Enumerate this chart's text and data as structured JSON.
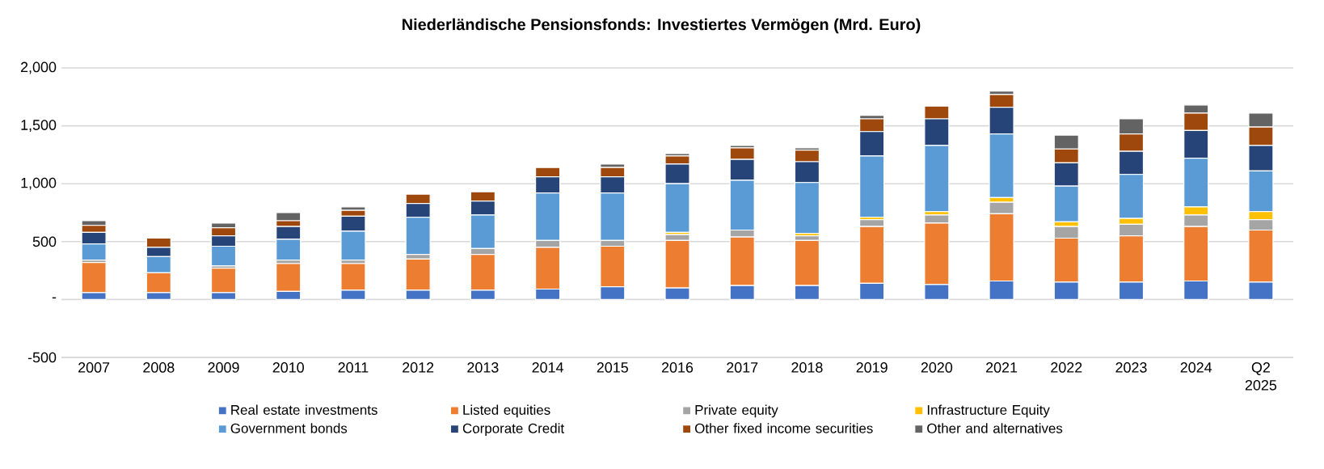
{
  "chart_data": {
    "type": "bar",
    "stacked": true,
    "title": "Niederländische Pensionsfonds: Investiertes Vermögen (Mrd. Euro)",
    "categories": [
      "2007",
      "2008",
      "2009",
      "2010",
      "2011",
      "2012",
      "2013",
      "2014",
      "2015",
      "2016",
      "2017",
      "2018",
      "2019",
      "2020",
      "2021",
      "2022",
      "2023",
      "2024",
      "Q2 2025"
    ],
    "series": [
      {
        "name": "Real estate investments",
        "color": "#4472c4",
        "values": [
          60,
          60,
          60,
          70,
          80,
          80,
          80,
          90,
          110,
          100,
          120,
          120,
          140,
          130,
          160,
          150,
          150,
          160,
          150
        ]
      },
      {
        "name": "Listed equities",
        "color": "#ed7d31",
        "values": [
          260,
          170,
          210,
          240,
          230,
          270,
          310,
          360,
          350,
          410,
          420,
          390,
          490,
          530,
          580,
          380,
          400,
          470,
          450
        ]
      },
      {
        "name": "Private equity",
        "color": "#a5a5a5",
        "values": [
          20,
          null,
          20,
          30,
          30,
          40,
          50,
          60,
          50,
          50,
          60,
          40,
          60,
          70,
          100,
          100,
          100,
          100,
          90
        ]
      },
      {
        "name": "Infrastructure Equity",
        "color": "#ffc000",
        "values": [
          0,
          0,
          0,
          0,
          0,
          0,
          0,
          0,
          0,
          20,
          0,
          20,
          20,
          30,
          40,
          40,
          50,
          70,
          70
        ]
      },
      {
        "name": "Government bonds",
        "color": "#5b9bd5",
        "values": [
          140,
          140,
          170,
          180,
          250,
          320,
          290,
          410,
          410,
          420,
          430,
          440,
          530,
          570,
          550,
          310,
          380,
          420,
          350
        ]
      },
      {
        "name": "Corporate Credit",
        "color": "#264478",
        "values": [
          100,
          80,
          90,
          110,
          130,
          120,
          120,
          140,
          140,
          170,
          180,
          180,
          210,
          230,
          230,
          200,
          200,
          240,
          220
        ]
      },
      {
        "name": "Other fixed income securities",
        "color": "#9e480e",
        "values": [
          60,
          80,
          70,
          50,
          50,
          80,
          80,
          80,
          80,
          70,
          100,
          100,
          110,
          110,
          110,
          120,
          150,
          150,
          160
        ]
      },
      {
        "name": "Other and alternatives",
        "color": "#636363",
        "values": [
          40,
          0,
          40,
          70,
          30,
          0,
          0,
          0,
          30,
          20,
          20,
          20,
          30,
          0,
          30,
          120,
          130,
          70,
          120
        ]
      }
    ],
    "ylim": [
      -500,
      2000
    ],
    "yticks": [
      {
        "value": -500,
        "label": "-500"
      },
      {
        "value": 0,
        "label": "-"
      },
      {
        "value": 500,
        "label": "500"
      },
      {
        "value": 1000,
        "label": "1,000"
      },
      {
        "value": 1500,
        "label": "1,500"
      },
      {
        "value": 2000,
        "label": "2,000"
      }
    ],
    "grid": "y",
    "legend": "bottom"
  }
}
